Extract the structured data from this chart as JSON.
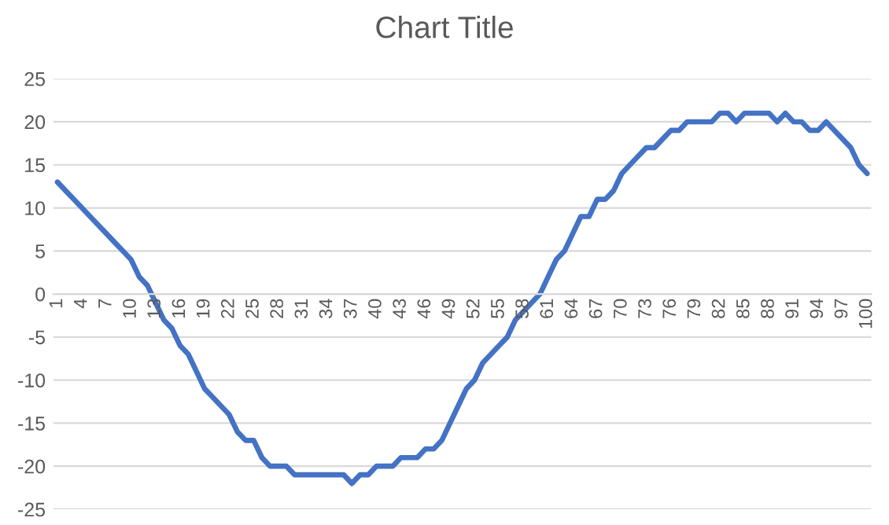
{
  "chart_data": {
    "type": "line",
    "title": "Chart Title",
    "categories": [
      "1",
      null,
      null,
      "4",
      null,
      null,
      "7",
      null,
      null,
      "10",
      null,
      null,
      "13",
      null,
      null,
      "16",
      null,
      null,
      "19",
      null,
      null,
      "22",
      null,
      null,
      "25",
      null,
      null,
      "28",
      null,
      null,
      "31",
      null,
      null,
      "34",
      null,
      null,
      "37",
      null,
      null,
      "40",
      null,
      null,
      "43",
      null,
      null,
      "46",
      null,
      null,
      "49",
      null,
      null,
      "52",
      null,
      null,
      "55",
      null,
      null,
      "58",
      null,
      null,
      "61",
      null,
      null,
      "64",
      null,
      null,
      "67",
      null,
      null,
      "70",
      null,
      null,
      "73",
      null,
      null,
      "76",
      null,
      null,
      "79",
      null,
      null,
      "82",
      null,
      null,
      "85",
      null,
      null,
      "88",
      null,
      null,
      "91",
      null,
      null,
      "94",
      null,
      null,
      "97",
      null,
      null,
      "100"
    ],
    "series": [
      {
        "color": "#4472c4",
        "values": [
          13,
          12,
          11,
          10,
          9,
          8,
          7,
          6,
          5,
          4,
          2,
          1,
          -1,
          -3,
          -4,
          -6,
          -7,
          -9,
          -11,
          -12,
          -13,
          -14,
          -16,
          -17,
          -17,
          -19,
          -20,
          -20,
          -20,
          -21,
          -21,
          -21,
          -21,
          -21,
          -21,
          -21,
          -22,
          -21,
          -21,
          -20,
          -20,
          -20,
          -19,
          -19,
          -19,
          -18,
          -18,
          -17,
          -15,
          -13,
          -11,
          -10,
          -8,
          -7,
          -6,
          -5,
          -3,
          -2,
          -1,
          0,
          2,
          4,
          5,
          7,
          9,
          9,
          11,
          11,
          12,
          14,
          15,
          16,
          17,
          17,
          18,
          19,
          19,
          20,
          20,
          20,
          20,
          21,
          21,
          20,
          21,
          21,
          21,
          21,
          20,
          21,
          20,
          20,
          19,
          19,
          20,
          19,
          18,
          17,
          15,
          14
        ]
      }
    ],
    "ylim": [
      -25,
      25
    ],
    "yticks": [
      -25,
      -20,
      -15,
      -10,
      -5,
      0,
      5,
      10,
      15,
      20,
      25
    ],
    "grid": "y",
    "legend": false,
    "marker": "none",
    "line_style": "solid"
  }
}
